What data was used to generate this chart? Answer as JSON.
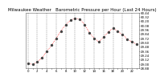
{
  "title": "Milwaukee Weather   Barometric Pressure per Hour (Last 24 Hours)",
  "hours": [
    0,
    1,
    2,
    3,
    4,
    5,
    6,
    7,
    8,
    9,
    10,
    11,
    12,
    13,
    14,
    15,
    16,
    17,
    18,
    19,
    20,
    21,
    22,
    23
  ],
  "pressure": [
    29.02,
    28.98,
    29.05,
    29.18,
    29.35,
    29.52,
    29.72,
    29.92,
    30.1,
    30.22,
    30.28,
    30.25,
    30.1,
    29.88,
    29.72,
    29.62,
    29.75,
    29.9,
    30.0,
    29.92,
    29.82,
    29.7,
    29.62,
    29.55
  ],
  "ylim_min": 28.88,
  "ylim_max": 30.44,
  "ytick_values": [
    28.88,
    29.0,
    29.12,
    29.24,
    29.36,
    29.48,
    29.6,
    29.72,
    29.84,
    29.96,
    30.08,
    30.2,
    30.32,
    30.44
  ],
  "line_color": "#ff0000",
  "marker_color": "#444444",
  "background_color": "#ffffff",
  "grid_color": "#888888",
  "title_fontsize": 4.0,
  "tick_fontsize": 2.8,
  "marker_size": 1.4,
  "line_width": 0.5
}
